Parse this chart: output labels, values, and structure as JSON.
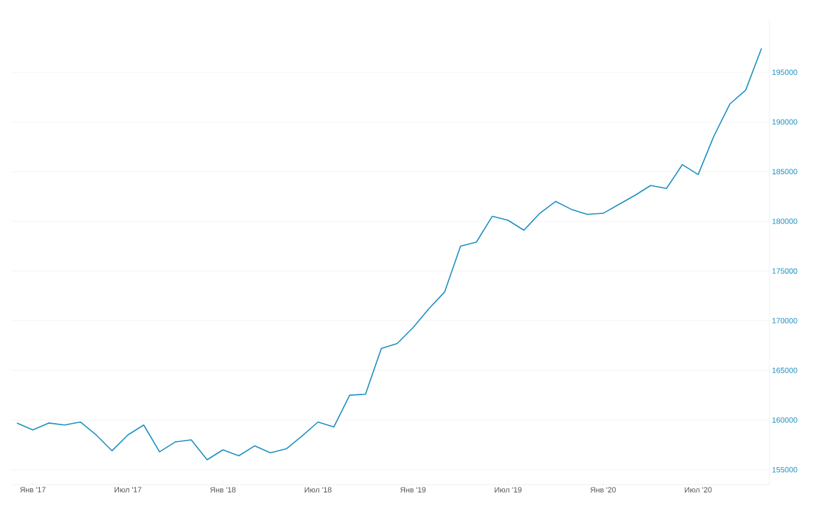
{
  "chart_data": {
    "type": "line",
    "x": [
      "2016-12",
      "2017-01",
      "2017-02",
      "2017-03",
      "2017-04",
      "2017-05",
      "2017-06",
      "2017-07",
      "2017-08",
      "2017-09",
      "2017-10",
      "2017-11",
      "2017-12",
      "2018-01",
      "2018-02",
      "2018-03",
      "2018-04",
      "2018-05",
      "2018-06",
      "2018-07",
      "2018-08",
      "2018-09",
      "2018-10",
      "2018-11",
      "2018-12",
      "2019-01",
      "2019-02",
      "2019-03",
      "2019-04",
      "2019-05",
      "2019-06",
      "2019-07",
      "2019-08",
      "2019-09",
      "2019-10",
      "2019-11",
      "2019-12",
      "2020-01",
      "2020-02",
      "2020-03",
      "2020-04",
      "2020-05",
      "2020-06",
      "2020-07",
      "2020-08",
      "2020-09",
      "2020-10",
      "2020-11"
    ],
    "series": [
      {
        "color": "#1a8fc0",
        "values": [
          159700,
          159000,
          159700,
          159500,
          159800,
          158500,
          156900,
          158500,
          159500,
          156800,
          157800,
          158000,
          156000,
          157000,
          156400,
          157400,
          156700,
          157100,
          158400,
          159800,
          159300,
          162500,
          162600,
          167200,
          167700,
          169300,
          171200,
          172900,
          177500,
          177900,
          180500,
          180100,
          179100,
          180800,
          182000,
          181200,
          180700,
          180800,
          181700,
          182600,
          183600,
          183300,
          185700,
          184700,
          188600,
          191800,
          193200,
          197400
        ]
      }
    ],
    "xlim": [
      "2016-11-20",
      "2020-11-16"
    ],
    "xticks": [
      {
        "value": "2017-01",
        "label": "Янв '17"
      },
      {
        "value": "2017-07",
        "label": "Июл '17"
      },
      {
        "value": "2018-01",
        "label": "Янв '18"
      },
      {
        "value": "2018-07",
        "label": "Июл '18"
      },
      {
        "value": "2019-01",
        "label": "Янв '19"
      },
      {
        "value": "2019-07",
        "label": "Июл '19"
      },
      {
        "value": "2020-01",
        "label": "Янв '20"
      },
      {
        "value": "2020-07",
        "label": "Июл '20"
      }
    ],
    "ylim": [
      153500,
      200300
    ],
    "yticks": [
      155000,
      160000,
      165000,
      170000,
      175000,
      180000,
      185000,
      190000,
      195000
    ],
    "grid": "y",
    "legend": false,
    "line_style": "solid"
  }
}
